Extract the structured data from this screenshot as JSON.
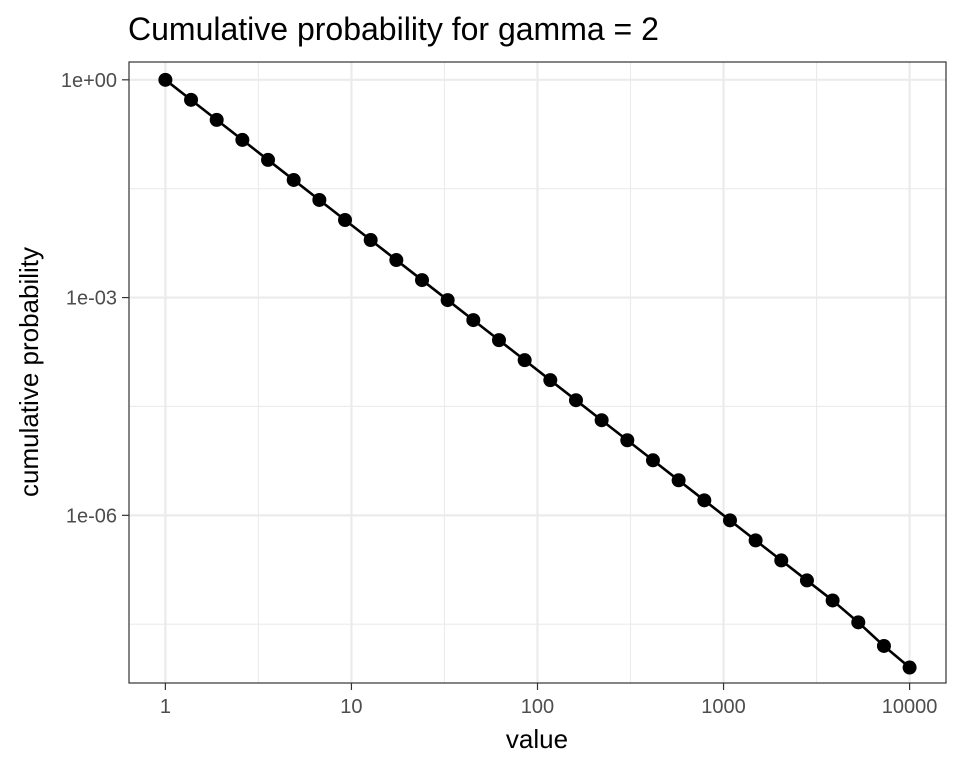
{
  "chart_data": {
    "type": "line",
    "title": "Cumulative probability for gamma = 2",
    "xlabel": "value",
    "ylabel": "cumulative probability",
    "x_scale": "log10",
    "y_scale": "log10",
    "xlim": [
      0.6375,
      15690
    ],
    "ylim": [
      4.9e-09,
      1.76
    ],
    "x_ticks": [
      1,
      10,
      100,
      1000,
      10000
    ],
    "x_tick_labels": [
      "1",
      "10",
      "100",
      "1000",
      "10000"
    ],
    "y_ticks": [
      1,
      0.001,
      1e-06
    ],
    "y_tick_labels": [
      "1e+00",
      "1e-03",
      "1e-06"
    ],
    "grid": true,
    "legend": "none",
    "colors": {
      "line": "#000000",
      "points": "#000000",
      "grid": "#ebebeb",
      "panel_border": "#333333",
      "background": "#ffffff"
    },
    "series": [
      {
        "x": [
          1,
          1.374,
          1.887,
          2.593,
          3.562,
          4.894,
          6.723,
          9.237,
          12.69,
          17.43,
          23.95,
          32.9,
          45.2,
          62.1,
          85.32,
          117.2,
          161.0,
          221.2,
          303.9,
          417.5,
          573.6,
          788.1,
          1083,
          1487,
          2043,
          2807,
          3857,
          5298,
          7279,
          10000
        ],
        "y": [
          1,
          0.5298,
          0.2807,
          0.1487,
          0.07879,
          0.04175,
          0.02212,
          0.01172,
          0.00621,
          0.00329,
          0.001743,
          0.0009237,
          0.0004894,
          0.0002593,
          0.0001374,
          7.279e-05,
          3.857e-05,
          2.043e-05,
          1.083e-05,
          5.736e-06,
          3.039e-06,
          1.61e-06,
          8.532e-07,
          4.52e-07,
          2.395e-07,
          1.269e-07,
          6.723e-08,
          3.356e-08,
          1.586e-08,
          8e-09
        ]
      }
    ]
  }
}
